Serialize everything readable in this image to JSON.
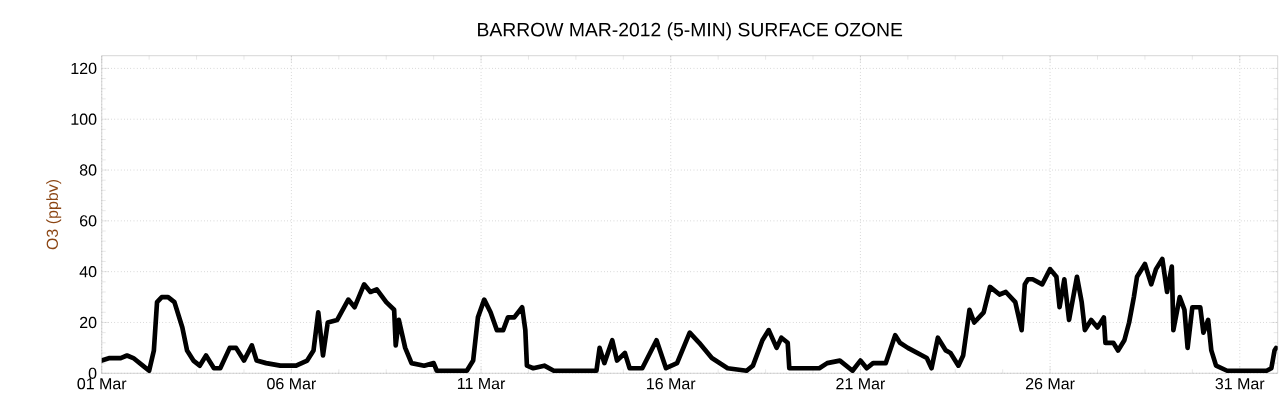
{
  "chart_data": {
    "type": "line",
    "title": "BARROW MAR-2012 (5-MIN) SURFACE OZONE",
    "ylabel": "O3 (ppbv)",
    "xlim": [
      "2012-03-01",
      "2012-04-01"
    ],
    "ylim": [
      0,
      125
    ],
    "xticks": [
      {
        "value": "2012-03-01",
        "label": "01 Mar"
      },
      {
        "value": "2012-03-06",
        "label": "06 Mar"
      },
      {
        "value": "2012-03-11",
        "label": "11 Mar"
      },
      {
        "value": "2012-03-16",
        "label": "16 Mar"
      },
      {
        "value": "2012-03-21",
        "label": "21 Mar"
      },
      {
        "value": "2012-03-26",
        "label": "26 Mar"
      },
      {
        "value": "2012-03-31",
        "label": "31 Mar"
      }
    ],
    "yticks": [
      0,
      20,
      40,
      60,
      80,
      100,
      120
    ],
    "grid": true,
    "marker": "none",
    "line_style": "solid",
    "color": "#000000",
    "x": [
      "2012-03-01T00:00",
      "2012-03-01T05:00",
      "2012-03-01T12:00",
      "2012-03-01T16:00",
      "2012-03-01T20:00",
      "2012-03-02T02:00",
      "2012-03-02T06:00",
      "2012-03-02T09:00",
      "2012-03-02T11:00",
      "2012-03-02T14:00",
      "2012-03-02T18:00",
      "2012-03-02T22:00",
      "2012-03-03T03:00",
      "2012-03-03T06:00",
      "2012-03-03T10:00",
      "2012-03-03T14:00",
      "2012-03-03T18:00",
      "2012-03-03T23:00",
      "2012-03-04T03:00",
      "2012-03-04T09:00",
      "2012-03-04T13:00",
      "2012-03-04T18:00",
      "2012-03-04T23:00",
      "2012-03-05T02:00",
      "2012-03-05T08:00",
      "2012-03-05T17:00",
      "2012-03-06T03:00",
      "2012-03-06T10:00",
      "2012-03-06T14:00",
      "2012-03-06T17:00",
      "2012-03-06T20:00",
      "2012-03-06T23:00",
      "2012-03-07T05:00",
      "2012-03-07T12:00",
      "2012-03-07T16:00",
      "2012-03-07T22:00",
      "2012-03-08T02:00",
      "2012-03-08T06:00",
      "2012-03-08T12:00",
      "2012-03-08T17:00",
      "2012-03-08T18:00",
      "2012-03-08T20:00",
      "2012-03-09T00:00",
      "2012-03-09T04:00",
      "2012-03-09T12:00",
      "2012-03-09T18:00",
      "2012-03-09T20:00",
      "2012-03-10T15:00",
      "2012-03-10T19:00",
      "2012-03-10T22:00",
      "2012-03-11T02:00",
      "2012-03-11T06:00",
      "2012-03-11T10:00",
      "2012-03-11T14:00",
      "2012-03-11T17:00",
      "2012-03-11T21:00",
      "2012-03-12T02:00",
      "2012-03-12T04:00",
      "2012-03-12T05:00",
      "2012-03-12T09:00",
      "2012-03-12T16:00",
      "2012-03-12T22:00",
      "2012-03-14T01:00",
      "2012-03-14T03:00",
      "2012-03-14T06:00",
      "2012-03-14T11:00",
      "2012-03-14T14:00",
      "2012-03-14T19:00",
      "2012-03-14T22:00",
      "2012-03-15T06:00",
      "2012-03-15T15:00",
      "2012-03-15T21:00",
      "2012-03-16T04:00",
      "2012-03-16T12:00",
      "2012-03-16T18:00",
      "2012-03-17T02:00",
      "2012-03-17T07:00",
      "2012-03-17T12:00",
      "2012-03-18T00:00",
      "2012-03-18T04:00",
      "2012-03-18T10:00",
      "2012-03-18T14:00",
      "2012-03-18T19:00",
      "2012-03-18T22:00",
      "2012-03-19T02:00",
      "2012-03-19T03:00",
      "2012-03-19T22:00",
      "2012-03-20T03:00",
      "2012-03-20T11:00",
      "2012-03-20T19:00",
      "2012-03-21T00:00",
      "2012-03-21T04:00",
      "2012-03-21T08:00",
      "2012-03-21T16:00",
      "2012-03-21T22:00",
      "2012-03-22T01:00",
      "2012-03-22T06:00",
      "2012-03-22T12:00",
      "2012-03-22T18:00",
      "2012-03-22T21:00",
      "2012-03-23T01:00",
      "2012-03-23T06:00",
      "2012-03-23T09:00",
      "2012-03-23T14:00",
      "2012-03-23T17:00",
      "2012-03-23T21:00",
      "2012-03-24T00:00",
      "2012-03-24T06:00",
      "2012-03-24T10:00",
      "2012-03-24T16:00",
      "2012-03-24T20:00",
      "2012-03-25T02:00",
      "2012-03-25T06:00",
      "2012-03-25T08:00",
      "2012-03-25T10:00",
      "2012-03-25T13:00",
      "2012-03-25T19:00",
      "2012-03-26T00:00",
      "2012-03-26T04:00",
      "2012-03-26T06:00",
      "2012-03-26T09:00",
      "2012-03-26T12:00",
      "2012-03-26T17:00",
      "2012-03-26T20:00",
      "2012-03-26T22:00",
      "2012-03-27T02:00",
      "2012-03-27T06:00",
      "2012-03-27T10:00",
      "2012-03-27T11:00",
      "2012-03-27T16:00",
      "2012-03-27T19:00",
      "2012-03-27T23:00",
      "2012-03-28T02:00",
      "2012-03-28T05:00",
      "2012-03-28T07:00",
      "2012-03-28T12:00",
      "2012-03-28T16:00",
      "2012-03-28T19:00",
      "2012-03-28T23:00",
      "2012-03-29T02:00",
      "2012-03-29T05:00",
      "2012-03-29T06:00",
      "2012-03-29T10:00",
      "2012-03-29T13:00",
      "2012-03-29T15:00",
      "2012-03-29T18:00",
      "2012-03-29T23:00",
      "2012-03-30T01:00",
      "2012-03-30T04:00",
      "2012-03-30T06:00",
      "2012-03-30T09:00",
      "2012-03-30T16:00",
      "2012-03-31T17:00",
      "2012-03-31T20:00",
      "2012-03-31T22:00",
      "2012-03-31T23:00"
    ],
    "values": [
      5,
      6,
      6,
      7,
      6,
      3,
      1,
      9,
      28,
      30,
      30,
      28,
      18,
      9,
      5,
      3,
      7,
      2,
      2,
      10,
      10,
      5,
      11,
      5,
      4,
      3,
      3,
      5,
      9,
      24,
      7,
      20,
      21,
      29,
      26,
      35,
      32,
      33,
      28,
      25,
      11,
      21,
      10,
      4,
      3,
      4,
      1,
      1,
      5,
      22,
      29,
      24,
      17,
      17,
      22,
      22,
      26,
      17,
      3,
      2,
      3,
      1,
      1,
      10,
      4,
      13,
      5,
      8,
      2,
      2,
      13,
      2,
      4,
      16,
      12,
      6,
      4,
      2,
      1,
      3,
      13,
      17,
      10,
      14,
      12,
      2,
      2,
      4,
      5,
      1,
      5,
      2,
      4,
      4,
      15,
      12,
      10,
      8,
      6,
      2,
      14,
      9,
      8,
      3,
      7,
      25,
      20,
      24,
      34,
      31,
      32,
      28,
      17,
      35,
      37,
      37,
      35,
      41,
      38,
      26,
      37,
      21,
      38,
      28,
      17,
      21,
      18,
      22,
      12,
      12,
      9,
      13,
      20,
      30,
      38,
      43,
      35,
      41,
      45,
      32,
      42,
      17,
      30,
      25,
      10,
      26,
      26,
      16,
      21,
      9,
      3,
      1,
      1,
      2,
      9,
      10
    ]
  }
}
